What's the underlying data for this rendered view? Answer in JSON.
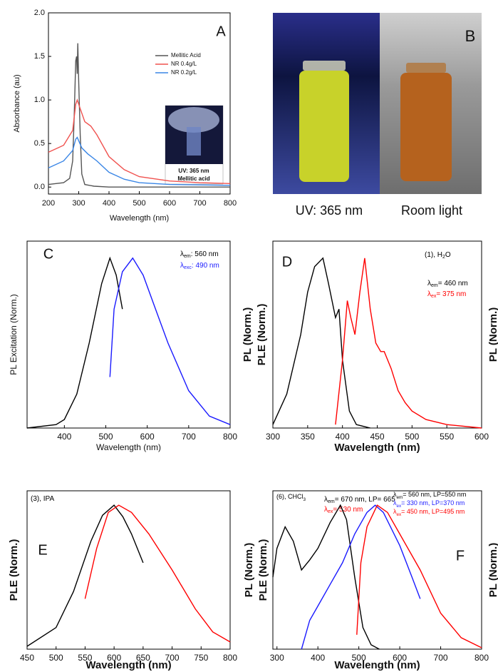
{
  "chart_data": [
    {
      "type": "line",
      "panel_label": "A",
      "xlabel": "Wavelength (nm)",
      "ylabels": [
        "Absorbance (au)"
      ],
      "xlim": [
        200,
        800
      ],
      "ylim": [
        -0.08,
        2.0
      ],
      "xticks": [
        200,
        300,
        400,
        500,
        600,
        700,
        800
      ],
      "yticks": [
        {
          "value": 0,
          "label": "0.0"
        },
        0.5,
        {
          "value": 1,
          "label": "1.0"
        },
        1.5,
        {
          "value": 2,
          "label": "2.0"
        }
      ],
      "legend": "upper right",
      "inset_caption": [
        "UV: 365 nm",
        "Mellitic acid"
      ],
      "series": [
        {
          "name": "Mellitic Acid",
          "color": "#555555",
          "x": [
            200,
            250,
            270,
            280,
            285,
            290,
            293,
            295,
            297,
            300,
            305,
            310,
            320,
            350,
            400,
            800
          ],
          "values": [
            0.03,
            0.05,
            0.1,
            0.3,
            0.8,
            1.45,
            1.5,
            1.3,
            1.65,
            1.2,
            0.6,
            0.15,
            0.03,
            0.01,
            0,
            0
          ]
        },
        {
          "name": "NR 0.4g/L",
          "color": "#f0524f",
          "x": [
            200,
            250,
            280,
            290,
            295,
            305,
            320,
            340,
            360,
            400,
            450,
            500,
            600,
            700,
            800
          ],
          "values": [
            0.4,
            0.48,
            0.65,
            0.95,
            1.0,
            0.9,
            0.75,
            0.7,
            0.6,
            0.35,
            0.2,
            0.12,
            0.07,
            0.05,
            0.04
          ]
        },
        {
          "name": "NR 0.2g/L",
          "color": "#3a86e6",
          "x": [
            200,
            250,
            280,
            290,
            295,
            310,
            330,
            360,
            400,
            450,
            500,
            600,
            800
          ],
          "values": [
            0.22,
            0.3,
            0.42,
            0.55,
            0.57,
            0.45,
            0.38,
            0.3,
            0.17,
            0.09,
            0.05,
            0.03,
            0.02
          ]
        }
      ]
    },
    {
      "type": "line",
      "panel_label": "C",
      "xlabel": "Wavelength (nm)",
      "ylabels": [
        "PL Excitation (Norm.)"
      ],
      "xlim": [
        310,
        800
      ],
      "ylim": [
        0,
        1.1
      ],
      "xticks": [
        400,
        500,
        600,
        700,
        800
      ],
      "annotations": [
        {
          "parts": [
            "λ",
            "em",
            ": 560 nm"
          ],
          "color": "#000000"
        },
        {
          "parts": [
            "λ",
            "exc",
            ": 490 nm"
          ],
          "color": "#1a1aff"
        }
      ],
      "series": [
        {
          "color": "#000000",
          "x": [
            310,
            380,
            400,
            430,
            460,
            490,
            510,
            525,
            540
          ],
          "values": [
            0,
            0.02,
            0.05,
            0.2,
            0.5,
            0.85,
            1.0,
            0.9,
            0.7
          ]
        },
        {
          "color": "#1a1aff",
          "x": [
            510,
            520,
            540,
            565,
            590,
            620,
            650,
            700,
            750,
            800
          ],
          "values": [
            0.3,
            0.7,
            0.92,
            1.0,
            0.9,
            0.7,
            0.5,
            0.22,
            0.07,
            0.02
          ]
        }
      ]
    },
    {
      "type": "line",
      "panel_label": "D",
      "xlabel": "Wavelength (nm)",
      "ylabels": [
        "PL (Norm.)",
        "PLE (Norm.)"
      ],
      "y2label": "PL (Norm.)",
      "xlim": [
        300,
        600
      ],
      "ylim": [
        0,
        1.1
      ],
      "xticks": [
        300,
        350,
        400,
        450,
        500,
        550,
        600
      ],
      "annotations": [
        {
          "parts": [
            "(1), H",
            "2",
            "O"
          ],
          "color": "#000000"
        },
        {
          "parts": [
            "λ",
            "em",
            "= 460 nm"
          ],
          "color": "#000000"
        },
        {
          "parts": [
            "λ",
            "ex",
            "= 375 nm"
          ],
          "color": "#ff0000"
        }
      ],
      "series": [
        {
          "color": "#000000",
          "x": [
            300,
            320,
            340,
            350,
            360,
            372,
            380,
            390,
            395,
            400,
            410,
            420,
            440
          ],
          "values": [
            0.02,
            0.2,
            0.55,
            0.8,
            0.95,
            1.0,
            0.85,
            0.65,
            0.7,
            0.4,
            0.1,
            0.02,
            0
          ]
        },
        {
          "color": "#ff0000",
          "x": [
            390,
            400,
            407,
            412,
            418,
            425,
            432,
            440,
            448,
            455,
            460,
            470,
            480,
            490,
            500,
            520,
            550,
            600
          ],
          "values": [
            0.02,
            0.4,
            0.75,
            0.65,
            0.55,
            0.8,
            1.0,
            0.7,
            0.5,
            0.45,
            0.45,
            0.35,
            0.22,
            0.15,
            0.1,
            0.05,
            0.02,
            0
          ]
        }
      ]
    },
    {
      "type": "line",
      "panel_label": "E",
      "xlabel": "Wavelength (nm)",
      "ylabels": [
        "PLE (Norm.)"
      ],
      "xlim": [
        450,
        800
      ],
      "ylim": [
        0,
        1.1
      ],
      "xticks": [
        450,
        500,
        550,
        600,
        650,
        700,
        750,
        800
      ],
      "annotations": [
        {
          "parts": [
            "(3), IPA"
          ],
          "color": "#000000"
        },
        {
          "parts": [
            "λ",
            "em",
            "= 670 nm, LP= 665"
          ],
          "color": "#000000"
        },
        {
          "parts": [
            "λ",
            "ex",
            "= 530 nm"
          ],
          "color": "#ff0000"
        }
      ],
      "series": [
        {
          "color": "#000000",
          "x": [
            450,
            500,
            530,
            560,
            580,
            600,
            615,
            630,
            650
          ],
          "values": [
            0.02,
            0.15,
            0.4,
            0.75,
            0.93,
            1.0,
            0.92,
            0.8,
            0.6
          ]
        },
        {
          "color": "#ff0000",
          "x": [
            550,
            570,
            590,
            608,
            630,
            660,
            700,
            740,
            770,
            800
          ],
          "values": [
            0.35,
            0.7,
            0.95,
            1.0,
            0.95,
            0.8,
            0.55,
            0.28,
            0.12,
            0.05
          ]
        }
      ]
    },
    {
      "type": "line",
      "panel_label": "F",
      "xlabel": "Wavelength (nm)",
      "ylabels": [
        "PL (Norm.)",
        "PLE (Norm.)"
      ],
      "y2label": "PL (Norm.)",
      "xlim": [
        290,
        800
      ],
      "ylim": [
        0,
        1.1
      ],
      "xticks": [
        300,
        400,
        500,
        600,
        700,
        800
      ],
      "annotations": [
        {
          "parts": [
            "(6), CHCl",
            "3"
          ],
          "color": "#000000"
        },
        {
          "parts": [
            "λ",
            "em",
            "= 560 nm, LP=550 nm"
          ],
          "color": "#000000"
        },
        {
          "parts": [
            "λ",
            "ex",
            "= 330 nm, LP=370 nm"
          ],
          "color": "#1a1aff"
        },
        {
          "parts": [
            "λ",
            "ex",
            "= 450 nm, LP=495 nm"
          ],
          "color": "#ff0000"
        }
      ],
      "series": [
        {
          "color": "#000000",
          "x": [
            290,
            300,
            320,
            340,
            360,
            380,
            400,
            430,
            455,
            470,
            490,
            510,
            530,
            550
          ],
          "values": [
            0.5,
            0.7,
            0.85,
            0.75,
            0.55,
            0.62,
            0.7,
            0.88,
            1.0,
            0.9,
            0.5,
            0.15,
            0.03,
            0
          ]
        },
        {
          "color": "#1a1aff",
          "x": [
            360,
            380,
            400,
            430,
            460,
            490,
            520,
            540,
            560,
            600,
            630,
            650
          ],
          "values": [
            0,
            0.2,
            0.3,
            0.45,
            0.6,
            0.8,
            0.95,
            1.0,
            0.95,
            0.72,
            0.5,
            0.35
          ]
        },
        {
          "color": "#ff0000",
          "x": [
            495,
            505,
            520,
            545,
            570,
            600,
            650,
            700,
            750,
            800
          ],
          "values": [
            0.1,
            0.6,
            0.85,
            1.0,
            0.95,
            0.8,
            0.55,
            0.25,
            0.08,
            0.01
          ]
        }
      ]
    }
  ],
  "photo": {
    "label": "B",
    "captions": [
      "UV: 365 nm",
      "Room light"
    ]
  }
}
